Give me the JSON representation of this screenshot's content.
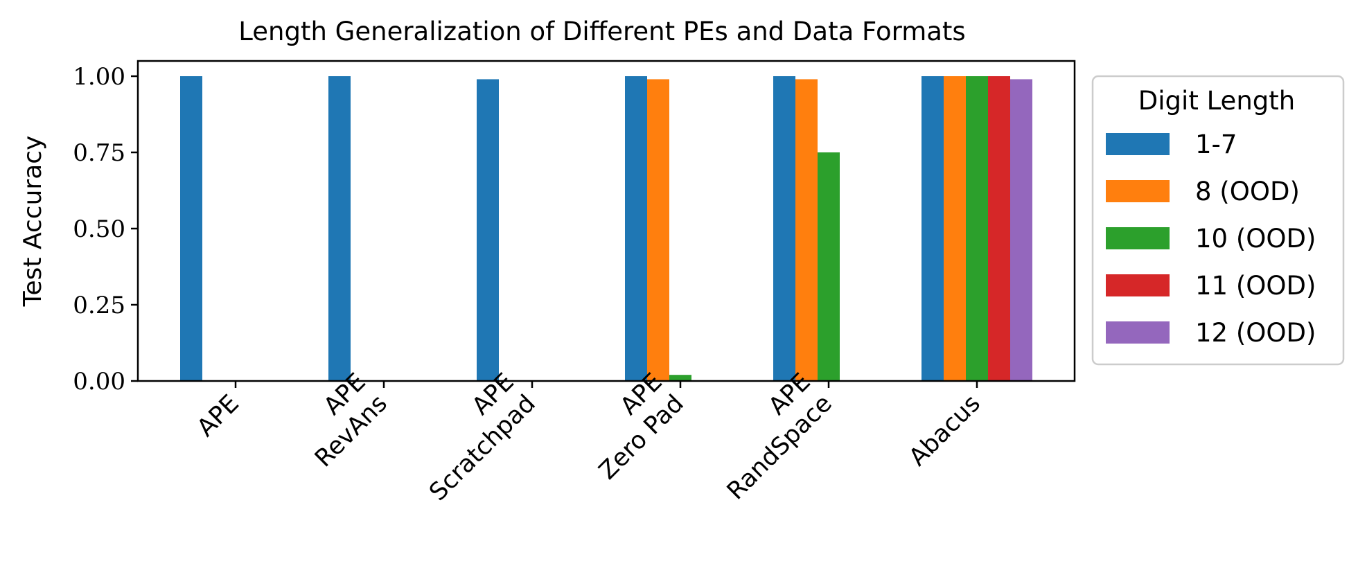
{
  "chart_data": {
    "type": "bar",
    "title": "Length Generalization of Different PEs and Data Formats",
    "xlabel": "",
    "ylabel": "Test Accuracy",
    "ylim": [
      0,
      1.05
    ],
    "yticks": [
      "0.00",
      "0.25",
      "0.50",
      "0.75",
      "1.00"
    ],
    "categories": [
      [
        "APE"
      ],
      [
        "APE",
        "RevAns"
      ],
      [
        "APE",
        "Scratchpad"
      ],
      [
        "APE",
        "Zero Pad"
      ],
      [
        "APE",
        "RandSpace"
      ],
      [
        "Abacus"
      ]
    ],
    "legend_title": "Digit Length",
    "legend_position": "outside-right",
    "grid": false,
    "series": [
      {
        "name": "1-7",
        "color": "#1f77b4",
        "values": [
          1.0,
          1.0,
          0.99,
          1.0,
          1.0,
          1.0
        ]
      },
      {
        "name": "8 (OOD)",
        "color": "#ff7f0e",
        "values": [
          0.0,
          0.0,
          0.0,
          0.99,
          0.99,
          1.0
        ]
      },
      {
        "name": "10 (OOD)",
        "color": "#2ca02c",
        "values": [
          0.0,
          0.0,
          0.0,
          0.02,
          0.75,
          1.0
        ]
      },
      {
        "name": "11 (OOD)",
        "color": "#d62728",
        "values": [
          0.0,
          0.0,
          0.0,
          0.0,
          0.0,
          1.0
        ]
      },
      {
        "name": "12 (OOD)",
        "color": "#9467bd",
        "values": [
          0.0,
          0.0,
          0.0,
          0.0,
          0.0,
          0.99
        ]
      }
    ]
  }
}
